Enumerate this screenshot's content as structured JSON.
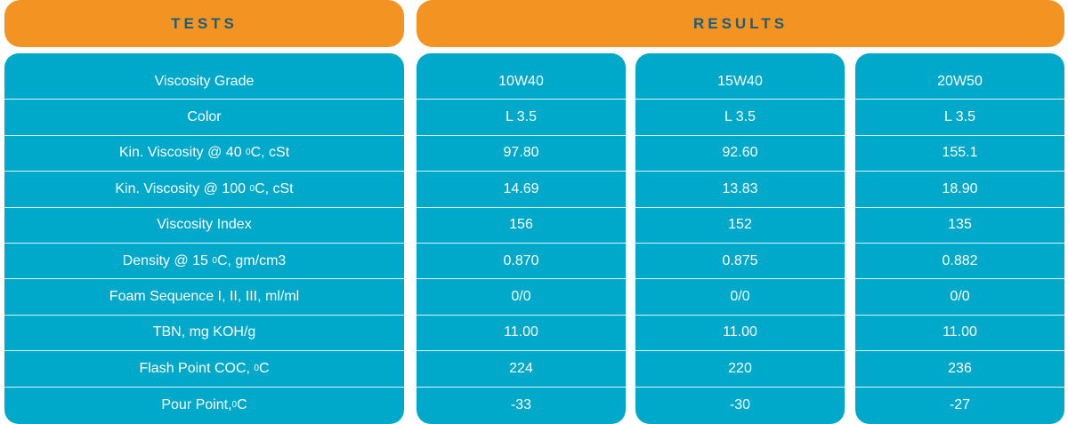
{
  "header": {
    "tests": "TESTS",
    "results": "RESULTS"
  },
  "tests": [
    {
      "label": "Viscosity Grade"
    },
    {
      "label": "Color"
    },
    {
      "pre": "Kin. Viscosity @ 40 ",
      "sup": "0",
      "post": "C, cSt"
    },
    {
      "pre": "Kin. Viscosity @ 100 ",
      "sup": "0",
      "post": "C, cSt"
    },
    {
      "label": "Viscosity Index"
    },
    {
      "pre": "Density @ 15 ",
      "sup": "0",
      "post": "C, gm/cm3"
    },
    {
      "label": "Foam Sequence I, II, III, ml/ml"
    },
    {
      "label": "TBN, mg KOH/g"
    },
    {
      "pre": "Flash Point COC, ",
      "sup": "0",
      "post": "C"
    },
    {
      "pre": "Pour Point,",
      "sup": "0",
      "post": "C"
    }
  ],
  "results": [
    [
      "10W40",
      "L 3.5",
      "97.80",
      "14.69",
      "156",
      "0.870",
      "0/0",
      "11.00",
      "224",
      "-33"
    ],
    [
      "15W40",
      "L 3.5",
      "92.60",
      "13.83",
      "152",
      "0.875",
      "0/0",
      "11.00",
      "220",
      "-30"
    ],
    [
      "20W50",
      "L 3.5",
      "155.1",
      "18.90",
      "135",
      "0.882",
      "0/0",
      "11.00",
      "236",
      "-27"
    ]
  ],
  "colors": {
    "header_bg": "#f39322",
    "header_text": "#1b5d7e",
    "panel_bg": "#00a9c9",
    "cell_text": "#ffffff"
  }
}
